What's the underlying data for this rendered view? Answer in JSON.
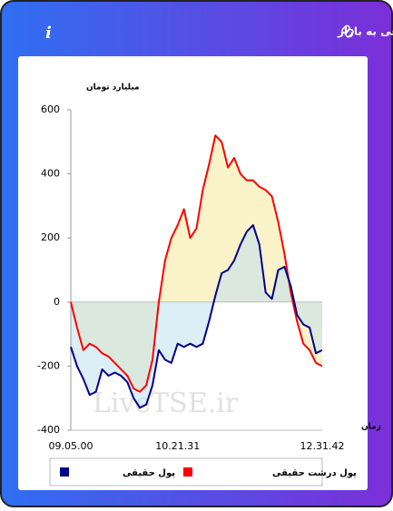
{
  "header": {
    "title": "برآیند ورود و خروج پول حقیقی و پول درشت حقیقی به بازار",
    "info": "i"
  },
  "chart_data": {
    "type": "line",
    "y_label": "میلیارد تومان",
    "x_label": "زمان",
    "watermark": "LiveTSE.ir",
    "categories": [
      "09.05.00",
      null,
      null,
      null,
      null,
      null,
      null,
      null,
      null,
      null,
      null,
      null,
      null,
      null,
      null,
      null,
      null,
      "10.21.31",
      null,
      null,
      null,
      null,
      null,
      null,
      null,
      null,
      null,
      null,
      null,
      null,
      null,
      null,
      null,
      null,
      null,
      null,
      null,
      null,
      null,
      null,
      "12.31.42"
    ],
    "series": [
      {
        "name": "پول حقیقی",
        "color": "#00008b",
        "area_color": "#bfe0ef",
        "values": [
          -140,
          -200,
          -240,
          -290,
          -280,
          -210,
          -230,
          -220,
          -230,
          -250,
          -300,
          -330,
          -320,
          -260,
          -150,
          -180,
          -190,
          -130,
          -140,
          -130,
          -140,
          -130,
          -60,
          20,
          90,
          100,
          130,
          180,
          220,
          240,
          180,
          30,
          10,
          100,
          110,
          50,
          -40,
          -70,
          -80,
          -160,
          -150
        ]
      },
      {
        "name": "پول درشت حقیقی",
        "color": "#ff0000",
        "area_color": "#f5e79a",
        "values": [
          0,
          -80,
          -150,
          -130,
          -140,
          -160,
          -170,
          -190,
          -210,
          -230,
          -270,
          -280,
          -260,
          -180,
          0,
          130,
          200,
          240,
          290,
          200,
          230,
          350,
          430,
          520,
          500,
          420,
          450,
          400,
          380,
          380,
          360,
          350,
          330,
          250,
          150,
          30,
          -60,
          -130,
          -150,
          -190,
          -200
        ]
      }
    ],
    "ylim": [
      -400,
      600
    ],
    "yticks": [
      -400,
      -200,
      0,
      200,
      400,
      600
    ]
  }
}
